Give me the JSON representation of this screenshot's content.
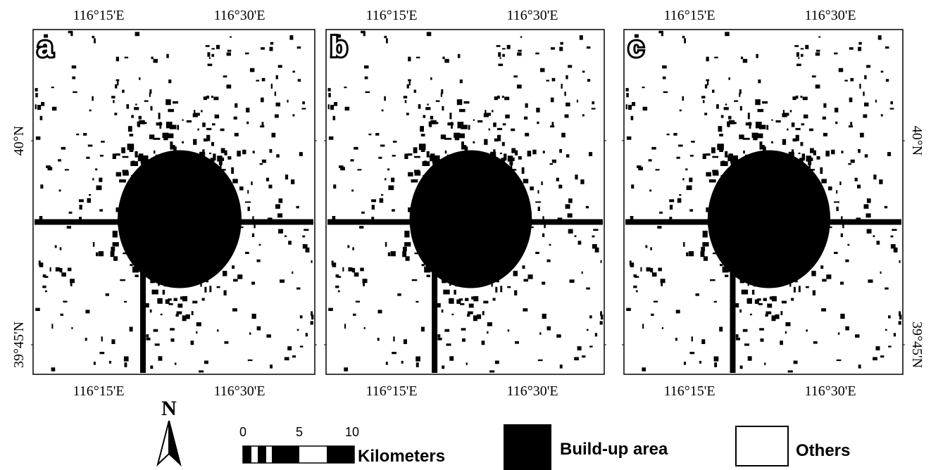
{
  "panels": [
    {
      "label": "a",
      "top_ticks": [
        "116°15'E",
        "116°30'E"
      ],
      "bottom_ticks": [
        "116°15'E",
        "116°30'E"
      ],
      "left_ticks": [
        "40°N",
        "39°45'N"
      ]
    },
    {
      "label": "b",
      "top_ticks": [
        "116°15'E",
        "116°30'E"
      ],
      "bottom_ticks": [
        "116°15'E",
        "116°30'E"
      ]
    },
    {
      "label": "c",
      "top_ticks": [
        "116°15'E",
        "116°30'E"
      ],
      "bottom_ticks": [
        "116°15'E",
        "116°30'E"
      ],
      "right_ticks": [
        "40°N",
        "39°45'N"
      ]
    }
  ],
  "north_arrow": "N",
  "scale_bar": {
    "labels": [
      "0",
      "5",
      "10"
    ],
    "unit": "Kilometers"
  },
  "legend": [
    "Build-up area",
    "Others"
  ]
}
